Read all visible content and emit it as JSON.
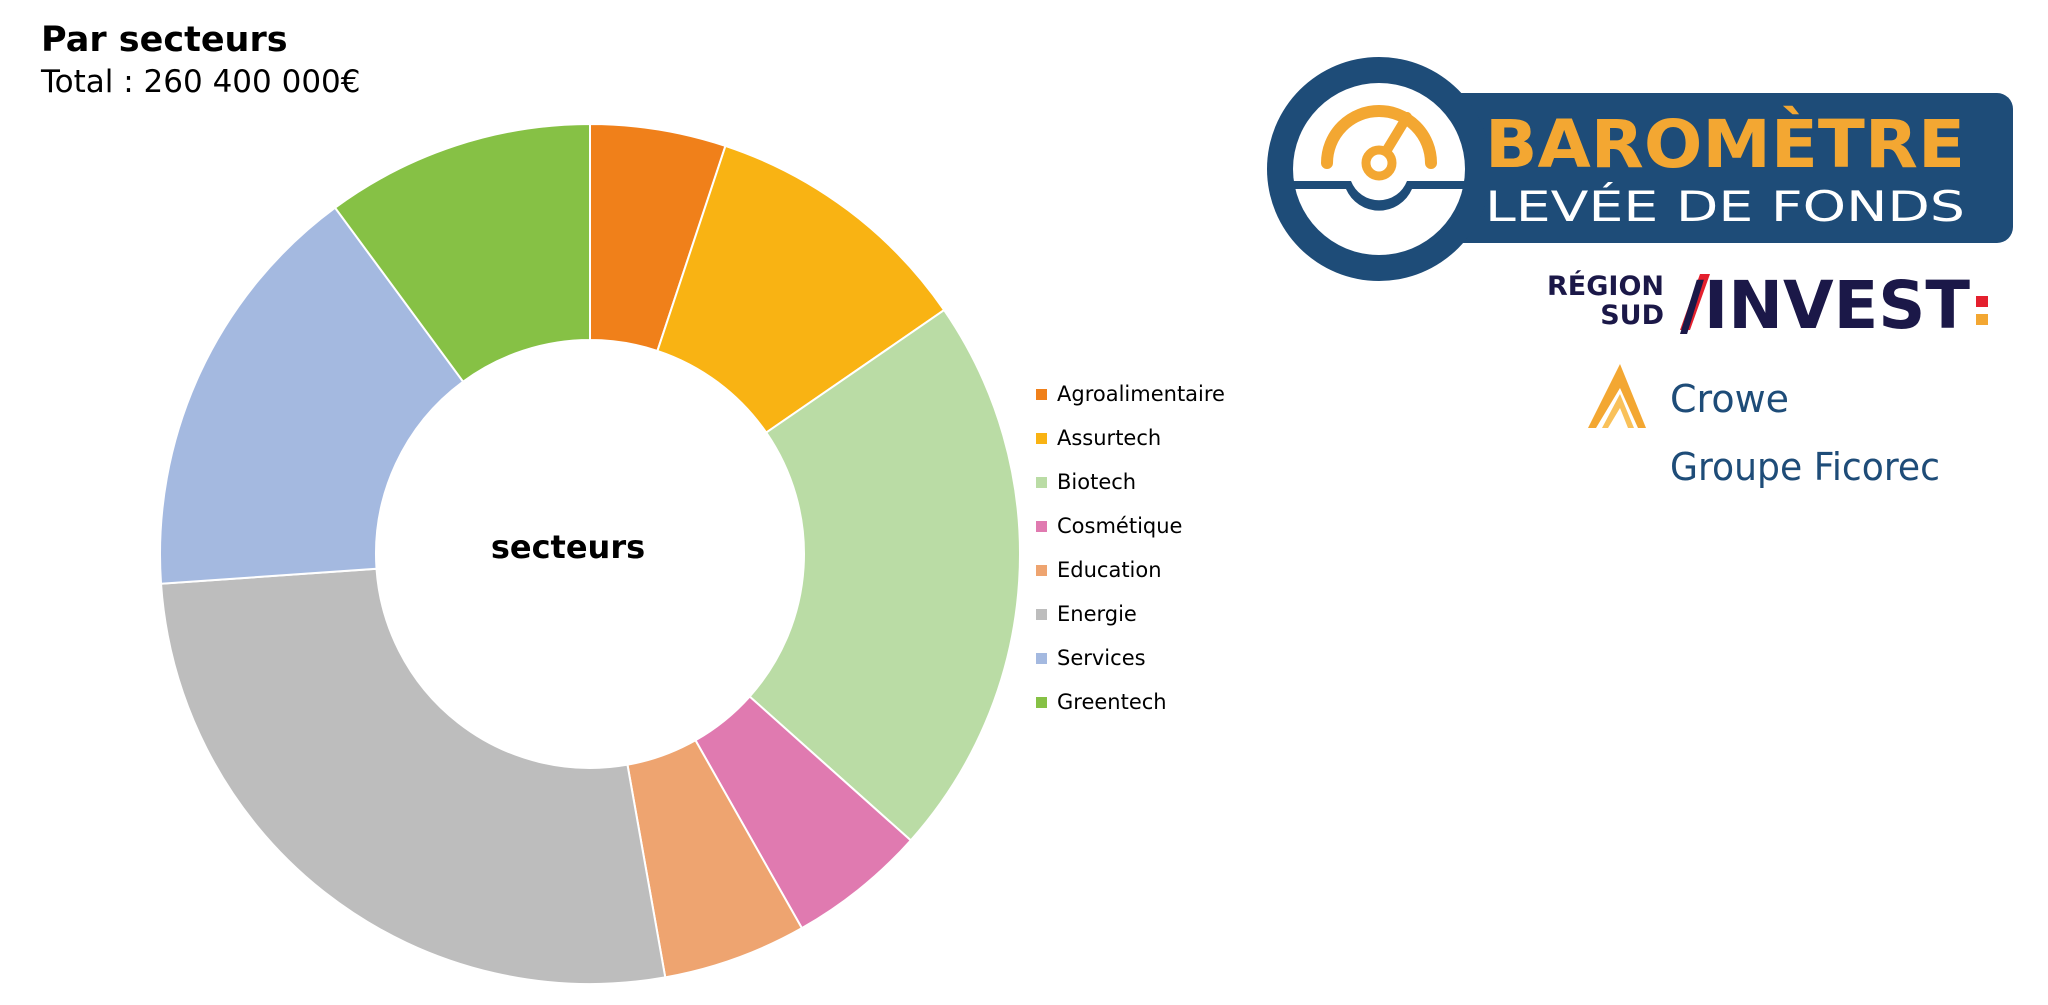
{
  "chart_data": {
    "type": "pie",
    "title": "Par secteurs",
    "subtitle": "Total : 260 400 000€",
    "center_label": "secteurs",
    "legend_position": "right",
    "categories": [
      "Agroalimentaire",
      "Assurtech",
      "Biotech",
      "Cosmétique",
      "Education",
      "Energie",
      "Services",
      "Greentech"
    ],
    "values": [
      5.1,
      10.3,
      21.2,
      5.2,
      5.4,
      26.7,
      16.0,
      10.1
    ],
    "value_unit": "percent of total (estimated)",
    "colors": [
      "#F0801A",
      "#F9B313",
      "#BADCA5",
      "#E07AB0",
      "#EEA470",
      "#BDBDBD",
      "#A4B9E0",
      "#86C145"
    ]
  },
  "logos": {
    "barometre_line1": "BAROMÈTRE",
    "barometre_line2": "LEVÉE DE FONDS",
    "region_line1": "RÉGION",
    "region_line2": "SUD",
    "invest_text": "/INVEST",
    "crowe_text": "Crowe",
    "ficorec_text": "Groupe Ficorec"
  },
  "icons": {
    "barometre": "gauge-icon",
    "crowe": "crowe-peak-icon"
  }
}
